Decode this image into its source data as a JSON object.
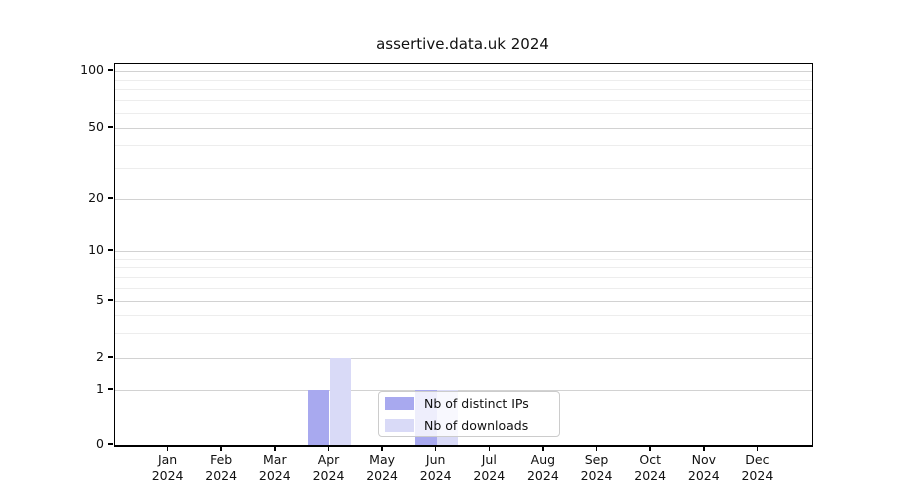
{
  "chart_data": {
    "type": "bar",
    "title": "assertive.data.uk 2024",
    "categories": [
      "Jan 2024",
      "Feb 2024",
      "Mar 2024",
      "Apr 2024",
      "May 2024",
      "Jun 2024",
      "Jul 2024",
      "Aug 2024",
      "Sep 2024",
      "Oct 2024",
      "Nov 2024",
      "Dec 2024"
    ],
    "series": [
      {
        "name": "Nb of distinct IPs",
        "color": "#a8a9ef",
        "values": [
          0,
          0,
          0,
          1,
          0,
          1,
          0,
          0,
          0,
          0,
          0,
          0
        ]
      },
      {
        "name": "Nb of downloads",
        "color": "#d9daf7",
        "values": [
          0,
          0,
          0,
          2,
          0,
          1,
          0,
          0,
          0,
          0,
          0,
          0
        ]
      }
    ],
    "y_axis": {
      "scale": "symlog",
      "major_ticks": [
        0,
        1,
        2,
        5,
        10,
        20,
        50,
        100
      ],
      "minor_ticks": [
        3,
        4,
        6,
        7,
        8,
        9,
        30,
        40,
        60,
        70,
        80,
        90
      ],
      "ylim": [
        0,
        110
      ]
    },
    "legend": {
      "location": "inside-bottom-center",
      "entries": [
        "Nb of distinct IPs",
        "Nb of downloads"
      ]
    },
    "grid": {
      "major_color": "#d2d2d2",
      "minor_color": "#ededed"
    },
    "xlabel": "",
    "ylabel": ""
  }
}
